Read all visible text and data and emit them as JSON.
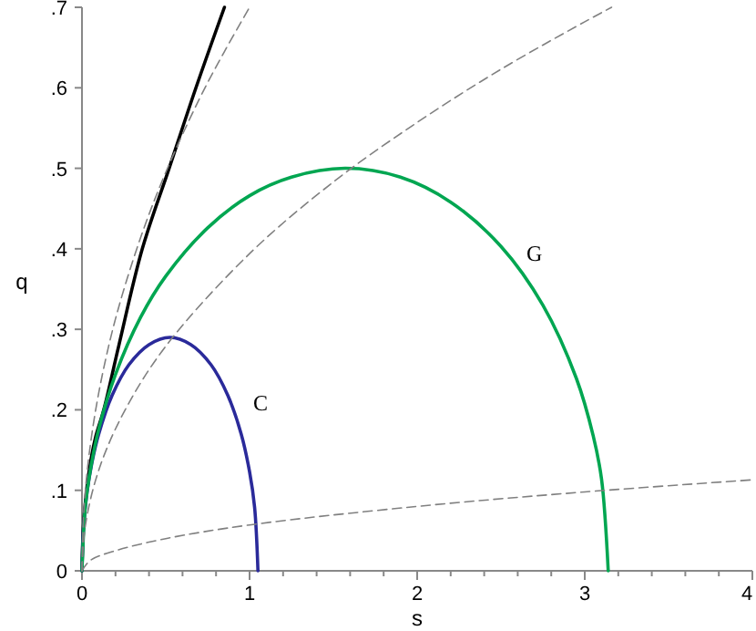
{
  "chart_data": {
    "type": "line",
    "xlabel": "s",
    "ylabel": "q",
    "xlim": [
      0,
      4
    ],
    "ylim": [
      0,
      0.7
    ],
    "xticks": [
      0,
      {
        "value": 0.2,
        "label": null
      },
      {
        "value": 0.4,
        "label": null
      },
      {
        "value": 0.6,
        "label": null
      },
      {
        "value": 0.8,
        "label": null
      },
      1,
      {
        "value": 1.2,
        "label": null
      },
      {
        "value": 1.4,
        "label": null
      },
      {
        "value": 1.6,
        "label": null
      },
      {
        "value": 1.8,
        "label": null
      },
      2,
      {
        "value": 2.2,
        "label": null
      },
      {
        "value": 2.4,
        "label": null
      },
      {
        "value": 2.6,
        "label": null
      },
      {
        "value": 2.8,
        "label": null
      },
      3,
      {
        "value": 3.2,
        "label": null
      },
      {
        "value": 3.4,
        "label": null
      },
      {
        "value": 3.6,
        "label": null
      },
      {
        "value": 3.8,
        "label": null
      },
      4
    ],
    "yticks": [
      0,
      {
        "value": 0.1,
        "label": ".1"
      },
      {
        "value": 0.2,
        "label": ".2"
      },
      {
        "value": 0.3,
        "label": ".3"
      },
      {
        "value": 0.4,
        "label": ".4"
      },
      {
        "value": 0.5,
        "label": ".5"
      },
      {
        "value": 0.6,
        "label": ".6"
      },
      {
        "value": 0.7,
        "label": ".7"
      }
    ],
    "grid": false,
    "marker": "none",
    "series": [
      {
        "color": "#000000",
        "line_style": "solid",
        "x": [
          0,
          0.01,
          0.04,
          0.08,
          0.13,
          0.22,
          0.36,
          0.52,
          0.68,
          0.85
        ],
        "values": [
          0,
          0.06,
          0.12,
          0.165,
          0.2,
          0.28,
          0.4,
          0.5,
          0.6,
          0.7
        ]
      },
      {
        "name": "C",
        "color": "#2a2a9a",
        "line_style": "solid",
        "x": [
          0,
          0.01,
          0.03,
          0.06,
          0.1,
          0.18,
          0.28,
          0.4,
          0.525,
          0.65,
          0.77,
          0.87,
          0.95,
          1.0,
          1.03,
          1.05
        ],
        "values": [
          0,
          0.056,
          0.097,
          0.135,
          0.17,
          0.218,
          0.256,
          0.281,
          0.29,
          0.281,
          0.256,
          0.218,
          0.17,
          0.123,
          0.079,
          0
        ]
      },
      {
        "name": "G",
        "color": "#00a651",
        "line_style": "solid",
        "x": [
          0,
          0.02,
          0.05,
          0.1,
          0.2,
          0.35,
          0.5,
          0.75,
          1,
          1.25,
          1.57,
          1.9,
          2.2,
          2.5,
          2.75,
          2.95,
          3.05,
          3.1,
          3.14
        ],
        "values": [
          0,
          0.08,
          0.125,
          0.176,
          0.244,
          0.315,
          0.366,
          0.426,
          0.466,
          0.489,
          0.5,
          0.489,
          0.458,
          0.403,
          0.33,
          0.239,
          0.168,
          0.114,
          0
        ]
      },
      {
        "color": "#808080",
        "line_style": "dashed",
        "x": [
          0,
          0.01,
          0.04,
          0.1,
          0.2,
          0.35,
          0.5,
          0.7,
          0.85,
          1.0
        ],
        "values": [
          0,
          0.07,
          0.14,
          0.221,
          0.313,
          0.414,
          0.495,
          0.586,
          0.645,
          0.7
        ]
      },
      {
        "color": "#808080",
        "line_style": "dashed",
        "x": [
          0,
          0.02,
          0.1,
          0.25,
          0.5,
          1,
          1.5,
          2,
          2.5,
          3,
          3.16
        ],
        "values": [
          0,
          0.056,
          0.125,
          0.197,
          0.279,
          0.394,
          0.483,
          0.557,
          0.623,
          0.682,
          0.7
        ]
      },
      {
        "color": "#808080",
        "line_style": "dashed",
        "x": [
          0,
          0.05,
          0.2,
          0.5,
          1,
          2,
          3,
          4
        ],
        "values": [
          0,
          0.013,
          0.025,
          0.04,
          0.057,
          0.08,
          0.098,
          0.113
        ]
      }
    ]
  }
}
